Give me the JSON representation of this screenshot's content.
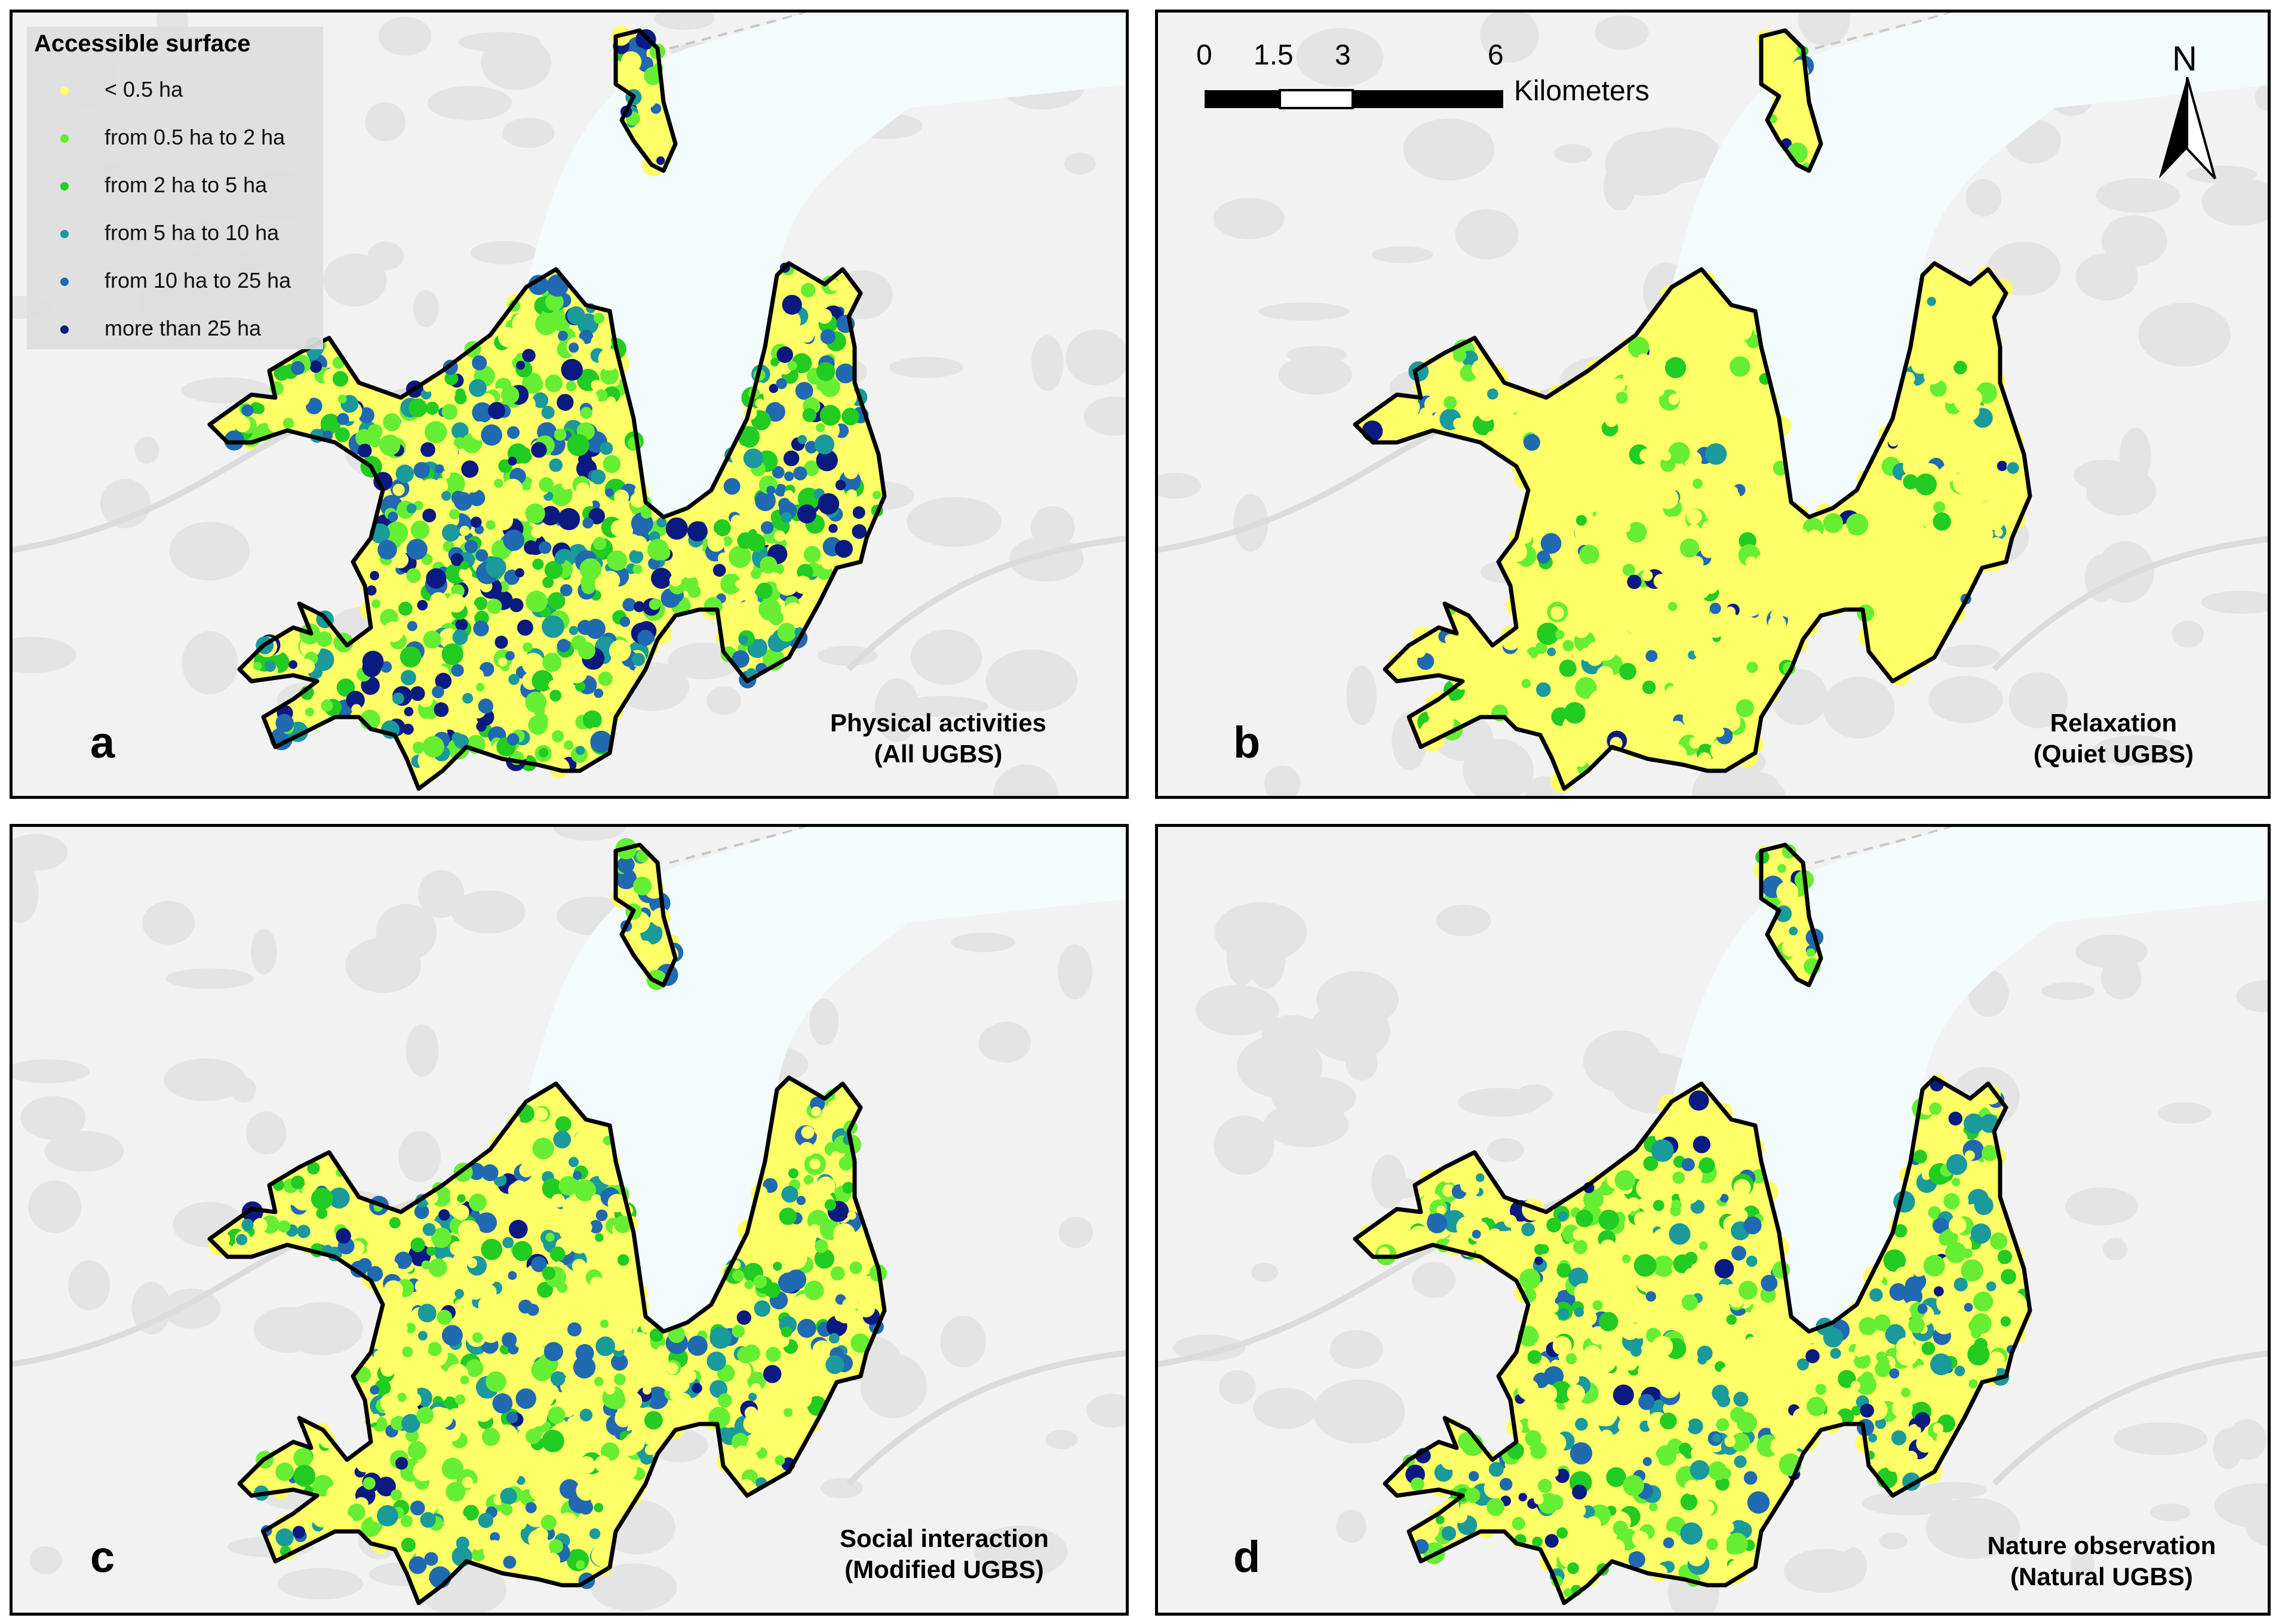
{
  "legend": {
    "title": "Accessible surface",
    "items": [
      {
        "label": "< 0.5 ha",
        "color": "#ffff66"
      },
      {
        "label": "from 0.5 ha to 2 ha",
        "color": "#66ee33"
      },
      {
        "label": "from 2 ha to 5 ha",
        "color": "#22cc22"
      },
      {
        "label": "from 5 ha to 10 ha",
        "color": "#1a9a9a"
      },
      {
        "label": "from 10 ha to 25 ha",
        "color": "#1f6ab0"
      },
      {
        "label": "more than 25 ha",
        "color": "#0b1a80"
      }
    ]
  },
  "scalebar": {
    "ticks": [
      "0",
      "1.5",
      "3",
      "6"
    ],
    "unit": "Kilometers"
  },
  "north_arrow": {
    "label": "N"
  },
  "panels": [
    {
      "letter": "a",
      "title_line1": "Physical activities",
      "title_line2": "(All UGBS)",
      "weights": [
        0.25,
        0.22,
        0.14,
        0.12,
        0.15,
        0.12
      ]
    },
    {
      "letter": "b",
      "title_line1": "Relaxation",
      "title_line2": "(Quiet UGBS)",
      "weights": [
        0.85,
        0.07,
        0.03,
        0.02,
        0.02,
        0.01
      ]
    },
    {
      "letter": "c",
      "title_line1": "Social interaction",
      "title_line2": "(Modified UGBS)",
      "weights": [
        0.5,
        0.18,
        0.1,
        0.1,
        0.08,
        0.04
      ]
    },
    {
      "letter": "d",
      "title_line1": "Nature observation",
      "title_line2": "(Natural UGBS)",
      "weights": [
        0.48,
        0.2,
        0.1,
        0.1,
        0.07,
        0.05
      ]
    }
  ]
}
